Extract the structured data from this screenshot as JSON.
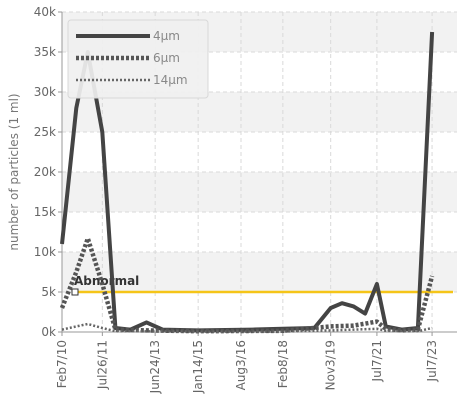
{
  "chart_data": {
    "type": "line",
    "ylabel": "number of particles (1 ml)",
    "ylim": [
      0,
      40000
    ],
    "yticks": [
      0,
      5000,
      10000,
      15000,
      20000,
      25000,
      30000,
      35000,
      40000
    ],
    "ytick_labels": [
      "0k",
      "5k",
      "10k",
      "15k",
      "20k",
      "25k",
      "30k",
      "35k",
      "40k"
    ],
    "xlim": [
      "2010-02-07",
      "2024-06-01"
    ],
    "xticks": [
      {
        "date": "2010-02-07",
        "label": "Feb7/10"
      },
      {
        "date": "2011-07-26",
        "label": "Jul26/11"
      },
      {
        "date": "2013-06-24",
        "label": "Jun24/13"
      },
      {
        "date": "2015-01-14",
        "label": "Jan14/15"
      },
      {
        "date": "2016-08-03",
        "label": "Aug3/16"
      },
      {
        "date": "2018-02-08",
        "label": "Feb8/18"
      },
      {
        "date": "2019-11-03",
        "label": "Nov3/19"
      },
      {
        "date": "2021-07-07",
        "label": "Jul7/21"
      },
      {
        "date": "2023-07-07",
        "label": "Jul7/23"
      }
    ],
    "grid": true,
    "legend_position": "top-left",
    "series": [
      {
        "name": "4μm",
        "color": "#444444",
        "style": "solid",
        "points": [
          {
            "x": "2010-02-07",
            "y": 11000
          },
          {
            "x": "2010-08-15",
            "y": 28000
          },
          {
            "x": "2011-01-15",
            "y": 35000
          },
          {
            "x": "2011-07-26",
            "y": 25000
          },
          {
            "x": "2012-01-15",
            "y": 500
          },
          {
            "x": "2012-08-01",
            "y": 300
          },
          {
            "x": "2013-03-01",
            "y": 1200
          },
          {
            "x": "2013-10-01",
            "y": 300
          },
          {
            "x": "2015-01-14",
            "y": 200
          },
          {
            "x": "2017-01-01",
            "y": 300
          },
          {
            "x": "2018-02-08",
            "y": 400
          },
          {
            "x": "2019-04-01",
            "y": 500
          },
          {
            "x": "2019-11-03",
            "y": 3000
          },
          {
            "x": "2020-04-01",
            "y": 3600
          },
          {
            "x": "2020-09-01",
            "y": 3200
          },
          {
            "x": "2021-02-01",
            "y": 2300
          },
          {
            "x": "2021-07-07",
            "y": 6000
          },
          {
            "x": "2021-11-01",
            "y": 700
          },
          {
            "x": "2022-06-01",
            "y": 300
          },
          {
            "x": "2023-01-01",
            "y": 500
          },
          {
            "x": "2023-07-07",
            "y": 37500
          }
        ]
      },
      {
        "name": "6μm",
        "color": "#555555",
        "style": "dotted-thick",
        "points": [
          {
            "x": "2010-02-07",
            "y": 3000
          },
          {
            "x": "2010-08-15",
            "y": 7500
          },
          {
            "x": "2011-01-15",
            "y": 11700
          },
          {
            "x": "2011-07-26",
            "y": 6000
          },
          {
            "x": "2012-01-15",
            "y": 300
          },
          {
            "x": "2013-03-01",
            "y": 200
          },
          {
            "x": "2015-01-14",
            "y": 100
          },
          {
            "x": "2018-02-08",
            "y": 150
          },
          {
            "x": "2019-11-03",
            "y": 700
          },
          {
            "x": "2020-09-01",
            "y": 800
          },
          {
            "x": "2021-07-07",
            "y": 1300
          },
          {
            "x": "2021-11-01",
            "y": 400
          },
          {
            "x": "2022-06-01",
            "y": 200
          },
          {
            "x": "2023-01-01",
            "y": 300
          },
          {
            "x": "2023-07-07",
            "y": 7000
          }
        ]
      },
      {
        "name": "14μm",
        "color": "#666666",
        "style": "dotted",
        "points": [
          {
            "x": "2010-02-07",
            "y": 300
          },
          {
            "x": "2010-08-15",
            "y": 700
          },
          {
            "x": "2011-01-15",
            "y": 1000
          },
          {
            "x": "2011-07-26",
            "y": 500
          },
          {
            "x": "2012-01-15",
            "y": 100
          },
          {
            "x": "2015-01-14",
            "y": 50
          },
          {
            "x": "2018-02-08",
            "y": 50
          },
          {
            "x": "2019-11-03",
            "y": 200
          },
          {
            "x": "2021-07-07",
            "y": 400
          },
          {
            "x": "2021-11-01",
            "y": 150
          },
          {
            "x": "2023-01-01",
            "y": 100
          },
          {
            "x": "2023-07-07",
            "y": 500
          }
        ]
      }
    ],
    "threshold": {
      "label": "Abnormal",
      "value": 5000,
      "color": "#f5c518"
    }
  }
}
